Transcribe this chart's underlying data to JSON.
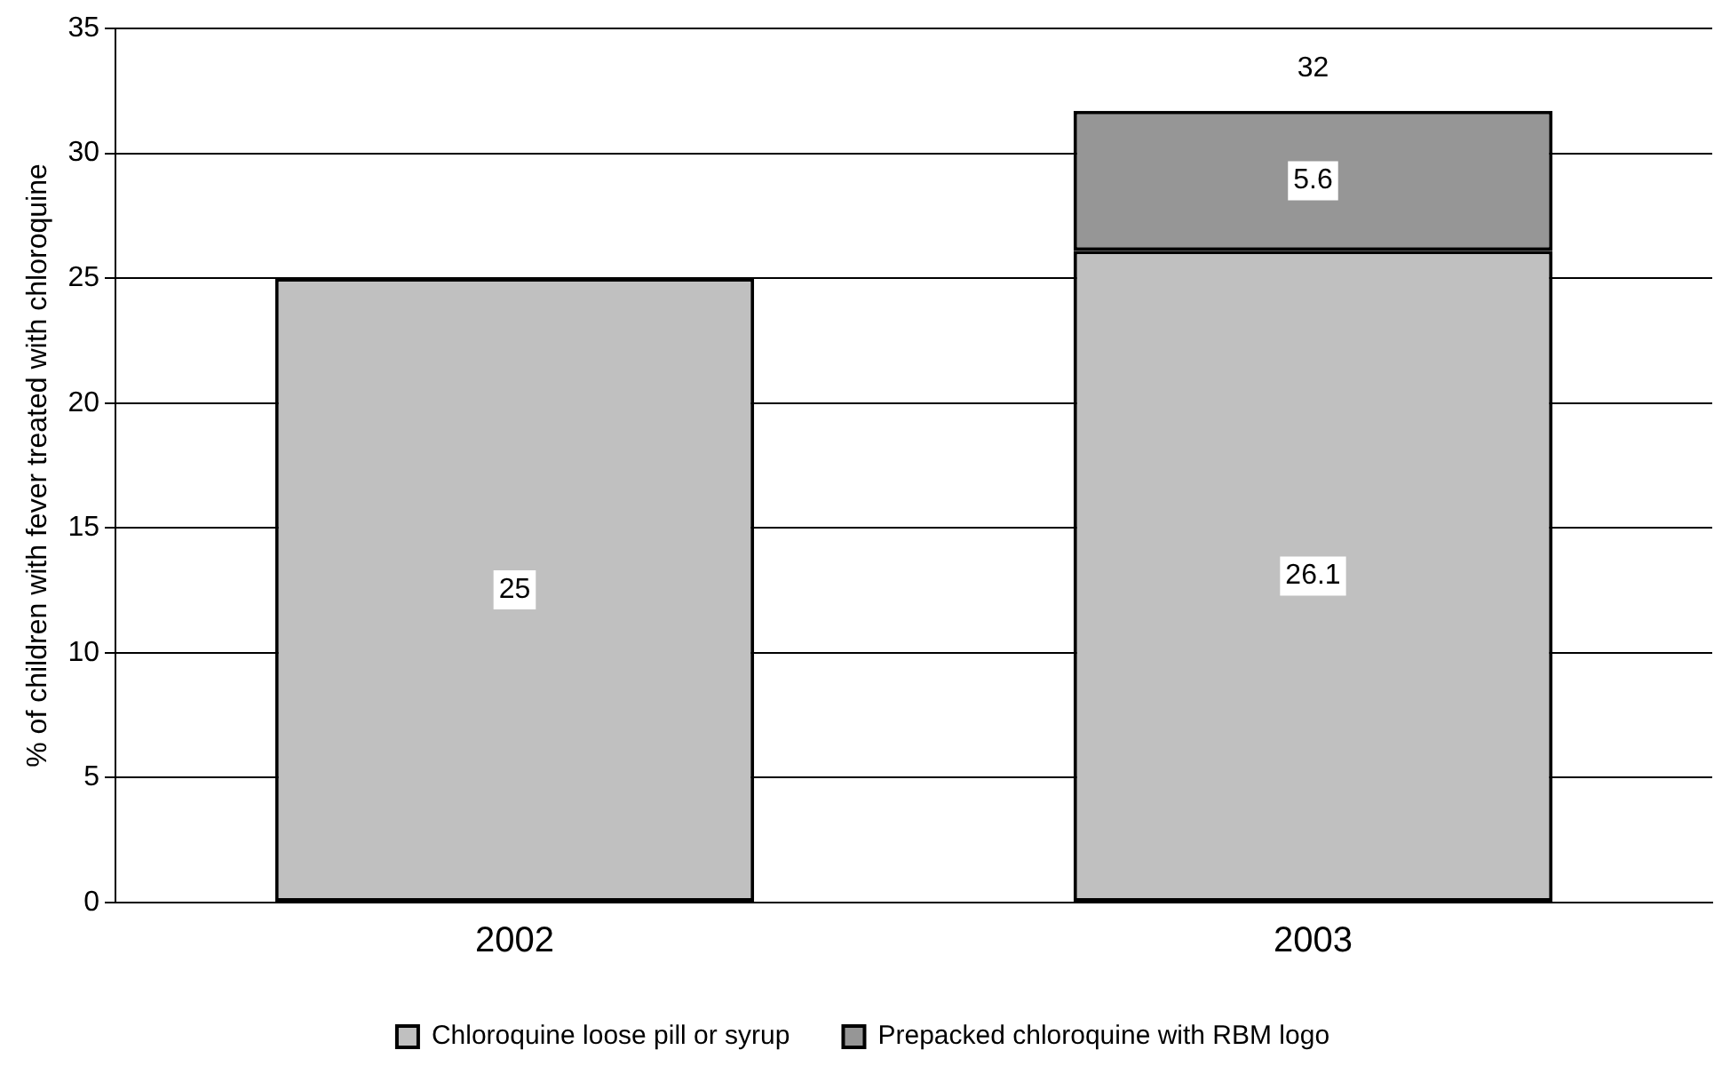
{
  "chart_data": {
    "type": "bar",
    "ylabel": "% of children with fever treated with chloroquine",
    "categories": [
      "2002",
      "2003"
    ],
    "series": [
      {
        "name": "Chloroquine loose pill or syrup",
        "color": "#c0c0c0",
        "values": [
          25,
          26.1
        ]
      },
      {
        "name": "Prepacked chloroquine with RBM logo",
        "color": "#969696",
        "values": [
          null,
          5.6
        ]
      }
    ],
    "stacked": true,
    "ylim": [
      0,
      35
    ],
    "yticks": [
      0,
      5,
      10,
      15,
      20,
      25,
      30,
      35
    ],
    "grid": "y",
    "legend": "bottom",
    "data_labels": true,
    "totals": [
      null,
      "32"
    ]
  }
}
